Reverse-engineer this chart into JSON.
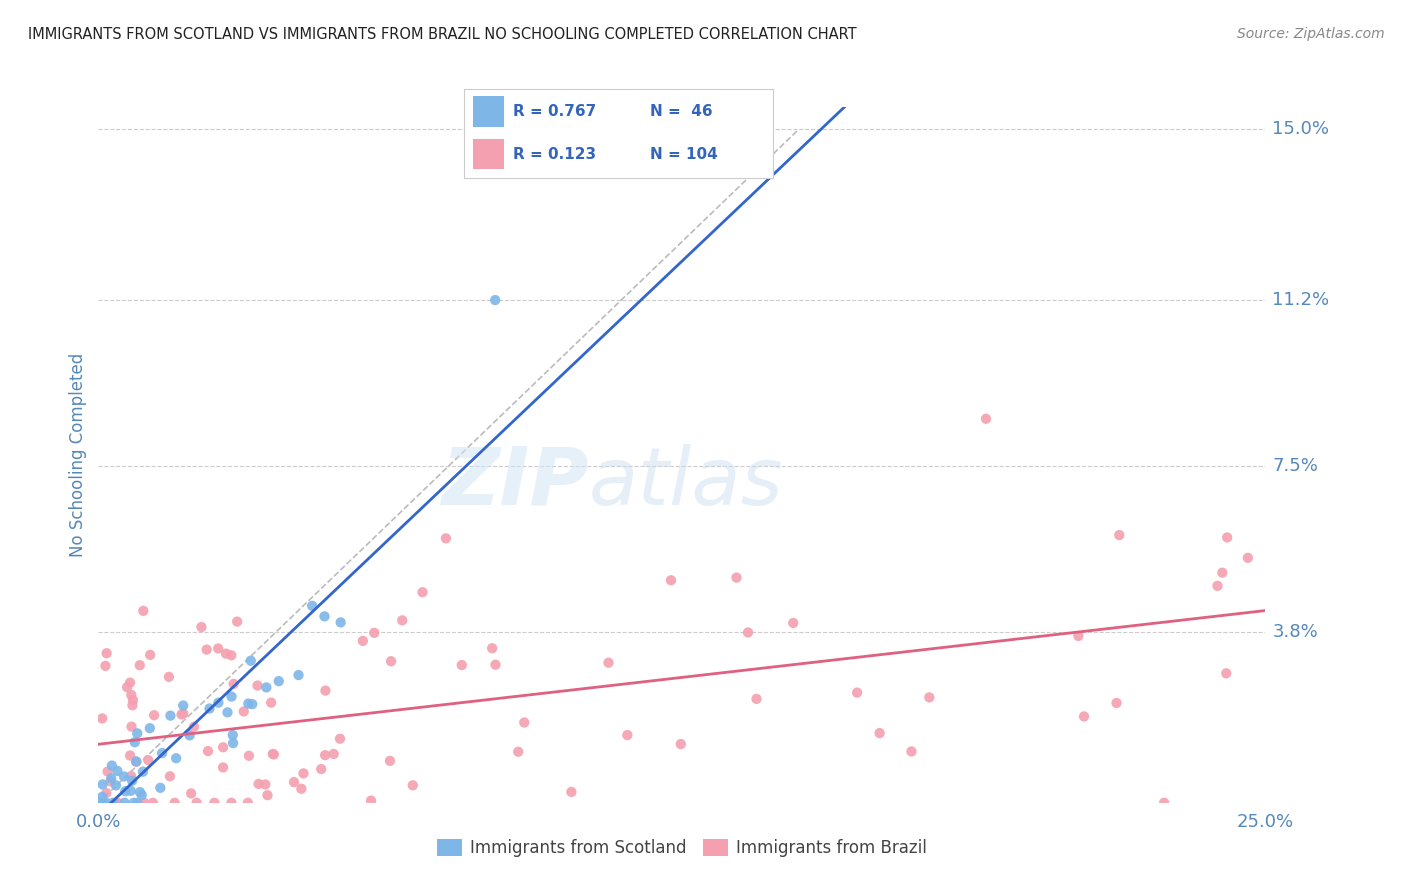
{
  "title": "IMMIGRANTS FROM SCOTLAND VS IMMIGRANTS FROM BRAZIL NO SCHOOLING COMPLETED CORRELATION CHART",
  "source": "Source: ZipAtlas.com",
  "ylabel": "No Schooling Completed",
  "ytick_values": [
    0.0,
    0.038,
    0.075,
    0.112,
    0.15
  ],
  "ytick_labels": [
    "",
    "3.8%",
    "7.5%",
    "11.2%",
    "15.0%"
  ],
  "xlim": [
    0.0,
    0.25
  ],
  "ylim": [
    0.0,
    0.155
  ],
  "scotland_R": 0.767,
  "scotland_N": 46,
  "brazil_R": 0.123,
  "brazil_N": 104,
  "scotland_color": "#7EB6E8",
  "brazil_color": "#F4A0B0",
  "scotland_line_color": "#3366CC",
  "brazil_line_color": "#E06080",
  "diagonal_color": "#BBBBBB",
  "background_color": "#FFFFFF",
  "grid_color": "#CCCCCC",
  "legend_label_scotland": "Immigrants from Scotland",
  "legend_label_brazil": "Immigrants from Brazil",
  "watermark_zip": "ZIP",
  "watermark_atlas": "atlas",
  "title_color": "#222222",
  "tick_color": "#5588BB",
  "legend_R_color": "#3366BB",
  "legend_N_color": "#3366BB"
}
